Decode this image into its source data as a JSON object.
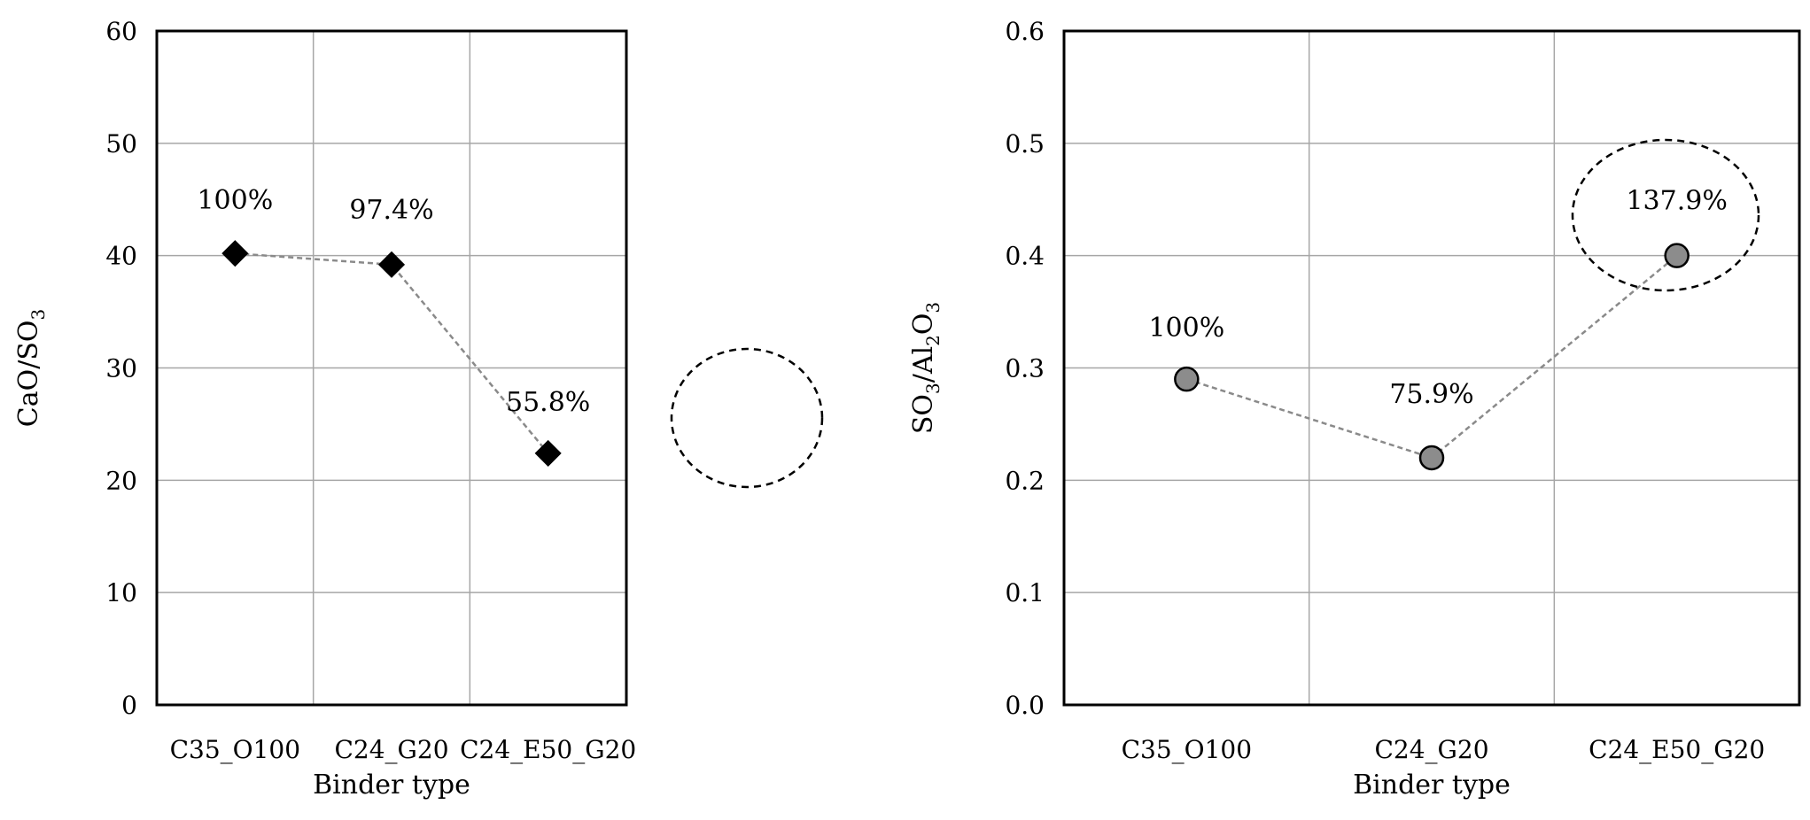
{
  "chart_data": [
    {
      "type": "line",
      "categories": [
        "C35_O100",
        "C24_G20",
        "C24_E50_G20"
      ],
      "values": [
        40.2,
        39.2,
        22.4
      ],
      "data_labels": [
        "100%",
        "97.4%",
        "55.8%"
      ],
      "xlabel": "Binder type",
      "ylabel_main": "CaO/SO",
      "ylabel_sub": "3",
      "ylim": [
        0,
        60
      ],
      "yticks": [
        "0",
        "10",
        "20",
        "30",
        "40",
        "50",
        "60"
      ],
      "marker": "diamond",
      "marker_color": "#000000",
      "line_style": "dashed",
      "line_color": "#8a8a8a",
      "grid": true,
      "highlight_index": 2
    },
    {
      "type": "line",
      "categories": [
        "C35_O100",
        "C24_G20",
        "C24_E50_G20"
      ],
      "values": [
        0.29,
        0.22,
        0.4
      ],
      "data_labels": [
        "100%",
        "75.9%",
        "137.9%"
      ],
      "xlabel": "Binder type",
      "ylabel_parts": [
        "SO",
        "3",
        "/Al",
        "2",
        "O",
        "3"
      ],
      "ylim": [
        0,
        0.6
      ],
      "yticks": [
        "0.0",
        "0.1",
        "0.2",
        "0.3",
        "0.4",
        "0.5",
        "0.6"
      ],
      "marker": "circle",
      "marker_color": "#8c8c8c",
      "line_style": "dashed",
      "line_color": "#8a8a8a",
      "grid": true,
      "highlight_index": 2
    }
  ]
}
